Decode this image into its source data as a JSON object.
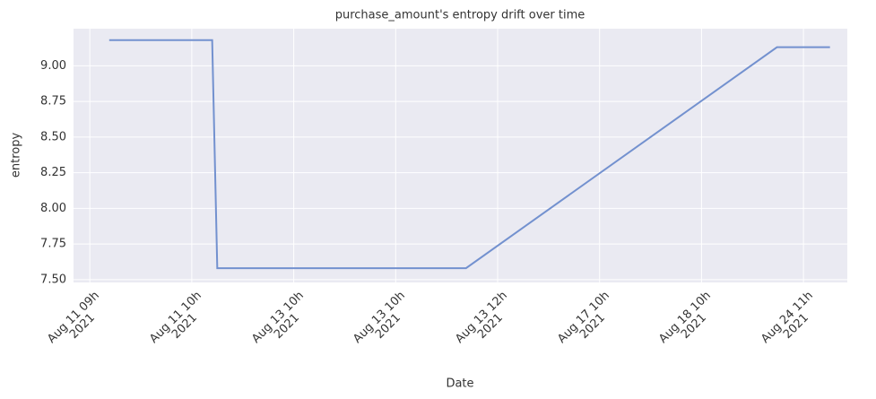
{
  "chart_data": {
    "type": "line",
    "title": "purchase_amount's entropy drift over time",
    "x_label": "Date",
    "y_label": "entropy",
    "x": [
      0.19,
      1.2,
      1.25,
      3.69,
      6.74,
      7.26
    ],
    "values": [
      9.18,
      9.18,
      7.58,
      7.58,
      9.13,
      9.13
    ],
    "color": "#7391cf",
    "xlim": [
      -0.16,
      7.43
    ],
    "xticks": [
      {
        "value": 0,
        "label": "Aug 11 09h\n2021"
      },
      {
        "value": 1,
        "label": "Aug 11 10h\n2021"
      },
      {
        "value": 2,
        "label": "Aug 13 10h\n2021"
      },
      {
        "value": 3,
        "label": "Aug 13 10h\n2021"
      },
      {
        "value": 4,
        "label": "Aug 13 12h\n2021"
      },
      {
        "value": 5,
        "label": "Aug 17 10h\n2021"
      },
      {
        "value": 6,
        "label": "Aug 18 10h\n2021"
      },
      {
        "value": 7,
        "label": "Aug 24 11h\n2021"
      }
    ],
    "ylim": [
      7.48,
      9.26
    ],
    "yticks": [
      {
        "value": 7.5,
        "label": "7.50"
      },
      {
        "value": 7.75,
        "label": "7.75"
      },
      {
        "value": 8,
        "label": "8.00"
      },
      {
        "value": 8.25,
        "label": "8.25"
      },
      {
        "value": 8.5,
        "label": "8.50"
      },
      {
        "value": 8.75,
        "label": "8.75"
      },
      {
        "value": 9,
        "label": "9.00"
      }
    ],
    "grid": true
  }
}
